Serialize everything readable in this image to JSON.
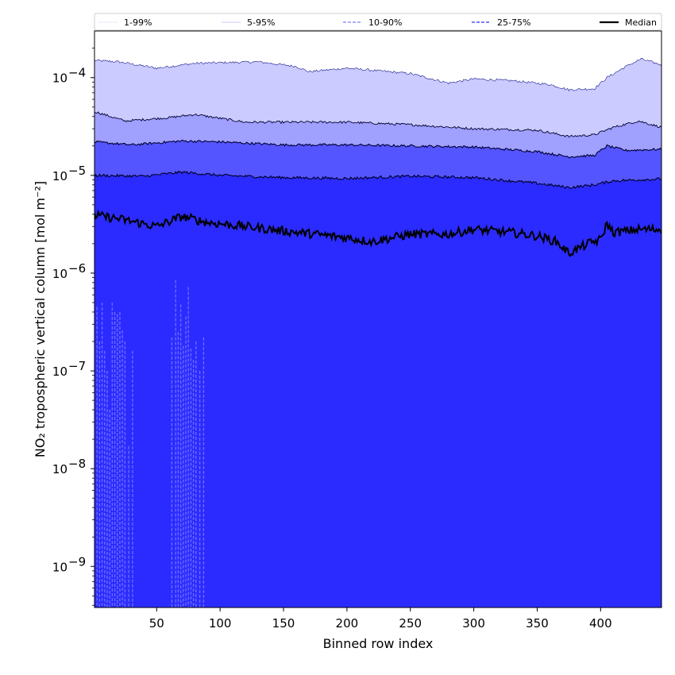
{
  "chart_data": {
    "type": "area",
    "title": "",
    "xlabel": "Binned row index",
    "ylabel": "NO₂ tropospheric vertical column [mol m⁻²]",
    "yscale": "log",
    "xlim": [
      1,
      448
    ],
    "ylim": [
      3.8e-10,
      0.0003
    ],
    "x_ticks": [
      50,
      100,
      150,
      200,
      250,
      300,
      350,
      400
    ],
    "y_ticks": [
      {
        "value": 1e-09,
        "exp": "-9"
      },
      {
        "value": 1e-08,
        "exp": "-8"
      },
      {
        "value": 1e-07,
        "exp": "-7"
      },
      {
        "value": 1e-06,
        "exp": "-6"
      },
      {
        "value": 1e-05,
        "exp": "-5"
      },
      {
        "value": 0.0001,
        "exp": "-4"
      }
    ],
    "y_tick_base": "10",
    "grid": false,
    "legend_position": "top, above plot (single row)",
    "band_colors": {
      "p1_99": "#2b2bff",
      "p5_95": "#2b2bff",
      "p10_90": "#5555ff",
      "p25_75": "#a0a0ff",
      "upper_outer": "#cbcbff"
    },
    "series": [
      {
        "name": "1-99%",
        "style": "thin solid, light",
        "lower_control": [
          [
            1,
            1e-12
          ],
          [
            448,
            1e-12
          ]
        ],
        "upper_control": [
          [
            1,
            0.00015
          ],
          [
            20,
            0.000145
          ],
          [
            50,
            0.000125
          ],
          [
            80,
            0.00014
          ],
          [
            130,
            0.000145
          ],
          [
            160,
            0.00013
          ],
          [
            170,
            0.000115
          ],
          [
            200,
            0.000125
          ],
          [
            250,
            0.00011
          ],
          [
            280,
            8.8e-05
          ],
          [
            300,
            9.7e-05
          ],
          [
            330,
            9.3e-05
          ],
          [
            360,
            8.5e-05
          ],
          [
            375,
            7.5e-05
          ],
          [
            395,
            7.7e-05
          ],
          [
            405,
            0.0001
          ],
          [
            420,
            0.00013
          ],
          [
            432,
            0.000155
          ],
          [
            448,
            0.000135
          ]
        ]
      },
      {
        "name": "5-95%",
        "style": "thin solid, dark",
        "lower_control": [
          [
            1,
            1e-12
          ],
          [
            448,
            1e-12
          ]
        ],
        "upper_control": [
          [
            1,
            4.5e-05
          ],
          [
            25,
            3.6e-05
          ],
          [
            60,
            3.9e-05
          ],
          [
            80,
            4.2e-05
          ],
          [
            120,
            3.5e-05
          ],
          [
            150,
            3.5e-05
          ],
          [
            200,
            3.5e-05
          ],
          [
            250,
            3.3e-05
          ],
          [
            300,
            3e-05
          ],
          [
            350,
            2.9e-05
          ],
          [
            375,
            2.5e-05
          ],
          [
            395,
            2.6e-05
          ],
          [
            410,
            3.1e-05
          ],
          [
            430,
            3.6e-05
          ],
          [
            448,
            3.1e-05
          ]
        ]
      },
      {
        "name": "10-90%",
        "style": "dashed",
        "lower_spikes": [
          [
            3,
            4.5e-07
          ],
          [
            5,
            2e-07
          ],
          [
            7,
            5e-07
          ],
          [
            9,
            1.6e-07
          ],
          [
            11,
            1e-07
          ],
          [
            13,
            4e-08
          ],
          [
            15,
            5e-07
          ],
          [
            17,
            4e-07
          ],
          [
            19,
            3.8e-07
          ],
          [
            21,
            4e-07
          ],
          [
            23,
            2.6e-07
          ],
          [
            25,
            2e-07
          ],
          [
            28,
            1.7e-08
          ],
          [
            31,
            1.6e-07
          ],
          [
            62,
            2.2e-07
          ],
          [
            65,
            8.5e-07
          ],
          [
            67,
            2.5e-07
          ],
          [
            69,
            4.8e-07
          ],
          [
            71,
            1.8e-07
          ],
          [
            73,
            3.6e-07
          ],
          [
            75,
            7.2e-07
          ],
          [
            77,
            1.7e-07
          ],
          [
            79,
            1.3e-07
          ],
          [
            81,
            2e-07
          ],
          [
            84,
            1e-07
          ],
          [
            87,
            2.2e-07
          ]
        ],
        "upper_control": [
          [
            1,
            2.2e-05
          ],
          [
            30,
            2.05e-05
          ],
          [
            70,
            2.25e-05
          ],
          [
            100,
            2.2e-05
          ],
          [
            150,
            2.05e-05
          ],
          [
            200,
            2.05e-05
          ],
          [
            250,
            2e-05
          ],
          [
            300,
            1.95e-05
          ],
          [
            350,
            1.75e-05
          ],
          [
            375,
            1.55e-05
          ],
          [
            395,
            1.6e-05
          ],
          [
            405,
            2e-05
          ],
          [
            420,
            1.8e-05
          ],
          [
            448,
            1.85e-05
          ]
        ]
      },
      {
        "name": "25-75%",
        "style": "dashed",
        "lower_control": [
          [
            1,
            1e-12
          ],
          [
            448,
            1e-12
          ]
        ],
        "upper_control": [
          [
            1,
            1e-05
          ],
          [
            40,
            9.8e-06
          ],
          [
            70,
            1.08e-05
          ],
          [
            100,
            1e-05
          ],
          [
            150,
            9.5e-06
          ],
          [
            200,
            9.3e-06
          ],
          [
            250,
            9.8e-06
          ],
          [
            300,
            9.5e-06
          ],
          [
            350,
            8.3e-06
          ],
          [
            375,
            7.5e-06
          ],
          [
            395,
            8e-06
          ],
          [
            410,
            8.8e-06
          ],
          [
            448,
            9.2e-06
          ]
        ]
      },
      {
        "name": "Median",
        "style": "thick solid black",
        "control": [
          [
            1,
            3.9e-06
          ],
          [
            20,
            3.6e-06
          ],
          [
            50,
            3e-06
          ],
          [
            70,
            3.8e-06
          ],
          [
            90,
            3.3e-06
          ],
          [
            120,
            3e-06
          ],
          [
            150,
            2.7e-06
          ],
          [
            175,
            2.5e-06
          ],
          [
            200,
            2.3e-06
          ],
          [
            220,
            2.1e-06
          ],
          [
            250,
            2.5e-06
          ],
          [
            280,
            2.5e-06
          ],
          [
            300,
            2.8e-06
          ],
          [
            330,
            2.6e-06
          ],
          [
            350,
            2.4e-06
          ],
          [
            365,
            2.1e-06
          ],
          [
            375,
            1.6e-06
          ],
          [
            390,
            2e-06
          ],
          [
            400,
            2.2e-06
          ],
          [
            405,
            3.2e-06
          ],
          [
            410,
            2.6e-06
          ],
          [
            430,
            2.8e-06
          ],
          [
            448,
            2.8e-06
          ]
        ]
      }
    ]
  }
}
